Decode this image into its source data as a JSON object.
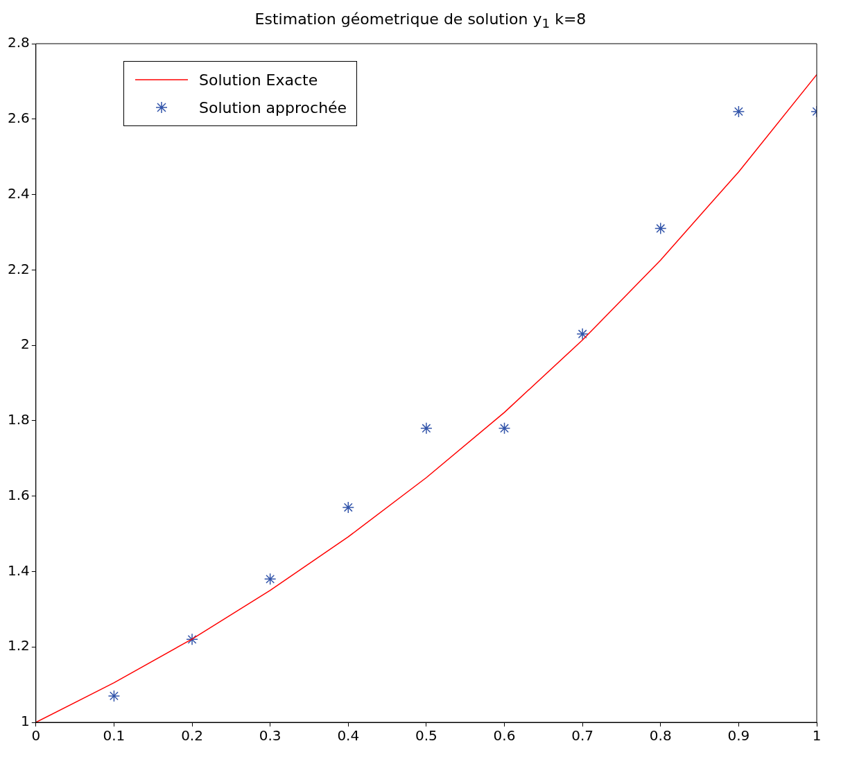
{
  "chart_data": {
    "type": "line",
    "title": "Estimation géometrique de solution y$_{1}$ k=8",
    "series": [
      {
        "name": "Solution Exacte",
        "color": "#ff0000",
        "marker": "none",
        "line_style": "solid",
        "x": [
          0,
          0.1,
          0.2,
          0.3,
          0.4,
          0.5,
          0.6,
          0.7,
          0.8,
          0.9,
          1
        ],
        "values": [
          1,
          1.105,
          1.221,
          1.35,
          1.492,
          1.649,
          1.822,
          2.014,
          2.226,
          2.46,
          2.718
        ]
      },
      {
        "name": "Solution approchée",
        "type": "scatter",
        "color": "#3355aa",
        "marker": "cross",
        "x": [
          0.1,
          0.2,
          0.3,
          0.4,
          0.5,
          0.6,
          0.7,
          0.8,
          0.9,
          1
        ],
        "values": [
          1.07,
          1.22,
          1.38,
          1.57,
          1.78,
          1.78,
          2.03,
          2.31,
          2.62,
          2.62
        ]
      }
    ],
    "xlim": [
      0,
      1
    ],
    "xticks": [
      0,
      0.1,
      0.2,
      0.3,
      0.4,
      0.5,
      0.6,
      0.7,
      0.8,
      0.9,
      1
    ],
    "ylim": [
      1,
      2.8
    ],
    "yticks": [
      1,
      1.2,
      1.4,
      1.6,
      1.8,
      2,
      2.2,
      2.4,
      2.6,
      2.8
    ],
    "grid": false,
    "legend": "top left"
  }
}
